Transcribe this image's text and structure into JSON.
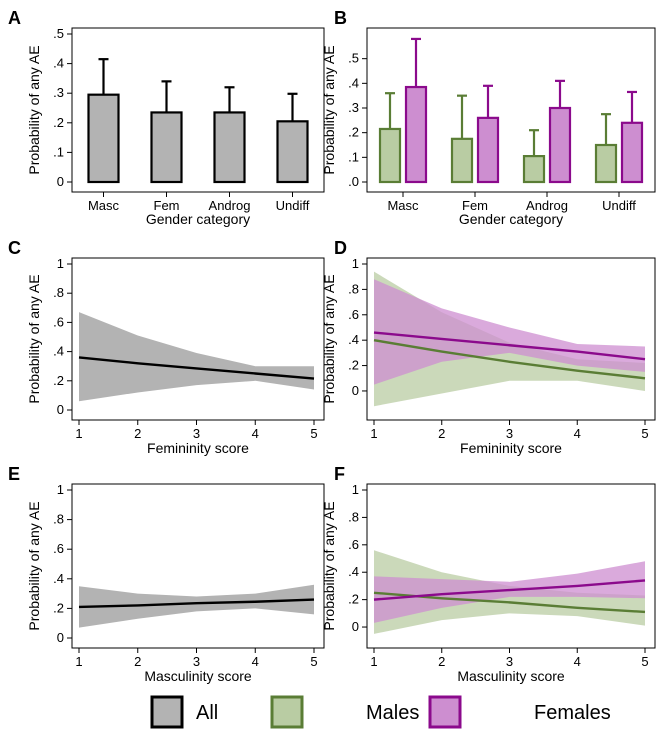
{
  "colors": {
    "all_fill": "#b3b3b3",
    "all_line": "#000000",
    "males": "#5a7d35",
    "males_fill": "#b9cca3",
    "females": "#8b0a8c",
    "females_fill": "#cd8ed0"
  },
  "legend": [
    {
      "key": "all",
      "label": "All"
    },
    {
      "key": "males",
      "label": "Males"
    },
    {
      "key": "females",
      "label": "Females"
    }
  ],
  "chart_data": [
    {
      "panel": "A",
      "type": "bar",
      "categories": [
        "Masc",
        "Fem",
        "Androg",
        "Undiff"
      ],
      "series": [
        {
          "name": "All",
          "values": [
            0.295,
            0.235,
            0.235,
            0.205
          ],
          "upper": [
            0.415,
            0.34,
            0.32,
            0.298
          ]
        }
      ],
      "xlabel": "Gender category",
      "ylabel": "Probability of any AE",
      "ylim": [
        0,
        0.5
      ],
      "yticks": [
        0,
        0.1,
        0.2,
        0.3,
        0.4,
        0.5
      ],
      "yticklabels": [
        "0",
        ".1",
        ".2",
        ".3",
        ".4",
        ".5"
      ]
    },
    {
      "panel": "B",
      "type": "bar",
      "categories": [
        "Masc",
        "Fem",
        "Androg",
        "Undiff"
      ],
      "series": [
        {
          "name": "Males",
          "values": [
            0.215,
            0.175,
            0.105,
            0.15
          ],
          "upper": [
            0.36,
            0.35,
            0.21,
            0.275
          ]
        },
        {
          "name": "Females",
          "values": [
            0.385,
            0.26,
            0.3,
            0.24
          ],
          "upper": [
            0.58,
            0.39,
            0.41,
            0.365
          ]
        }
      ],
      "xlabel": "Gender category",
      "ylabel": "Probability of any AE",
      "ylim": [
        0,
        0.6
      ],
      "yticks": [
        0,
        0.1,
        0.2,
        0.3,
        0.4,
        0.5
      ],
      "yticklabels": [
        ".0",
        ".1",
        ".2",
        ".3",
        ".4",
        ".5"
      ]
    },
    {
      "panel": "C",
      "type": "line",
      "x": [
        1,
        2,
        3,
        4,
        5
      ],
      "series": [
        {
          "name": "All",
          "values": [
            0.36,
            0.32,
            0.285,
            0.25,
            0.215
          ],
          "lower": [
            0.06,
            0.12,
            0.17,
            0.2,
            0.14
          ],
          "upper": [
            0.67,
            0.51,
            0.39,
            0.3,
            0.3
          ]
        }
      ],
      "xlabel": "Femininity score",
      "ylabel": "Probability of any AE",
      "xlim": [
        1,
        5
      ],
      "ylim": [
        0,
        1
      ],
      "xticks": [
        1,
        2,
        3,
        4,
        5
      ],
      "yticks": [
        0,
        0.2,
        0.4,
        0.6,
        0.8,
        1
      ],
      "yticklabels": [
        "0",
        ".2",
        ".4",
        ".6",
        ".8",
        "1"
      ]
    },
    {
      "panel": "D",
      "type": "line",
      "x": [
        1,
        2,
        3,
        4,
        5
      ],
      "series": [
        {
          "name": "Males",
          "values": [
            0.4,
            0.31,
            0.23,
            0.16,
            0.1
          ],
          "lower": [
            -0.12,
            -0.02,
            0.08,
            0.08,
            0.0
          ],
          "upper": [
            0.94,
            0.62,
            0.38,
            0.25,
            0.22
          ]
        },
        {
          "name": "Females",
          "values": [
            0.46,
            0.41,
            0.36,
            0.31,
            0.25
          ],
          "lower": [
            0.05,
            0.23,
            0.3,
            0.2,
            0.15
          ],
          "upper": [
            0.88,
            0.65,
            0.5,
            0.37,
            0.35
          ]
        }
      ],
      "xlabel": "Femininity score",
      "ylabel": "Probability of any AE",
      "xlim": [
        1,
        5
      ],
      "ylim": [
        -0.15,
        1
      ],
      "xticks": [
        1,
        2,
        3,
        4,
        5
      ],
      "yticks": [
        0,
        0.2,
        0.4,
        0.6,
        0.8,
        1
      ],
      "yticklabels": [
        "0",
        ".2",
        ".4",
        ".6",
        ".8",
        "1"
      ]
    },
    {
      "panel": "E",
      "type": "line",
      "x": [
        1,
        2,
        3,
        4,
        5
      ],
      "series": [
        {
          "name": "All",
          "values": [
            0.21,
            0.22,
            0.235,
            0.245,
            0.26
          ],
          "lower": [
            0.07,
            0.13,
            0.18,
            0.2,
            0.16
          ],
          "upper": [
            0.35,
            0.3,
            0.28,
            0.3,
            0.36
          ]
        }
      ],
      "xlabel": "Masculinity score",
      "ylabel": "Probability of any AE",
      "xlim": [
        1,
        5
      ],
      "ylim": [
        0,
        1
      ],
      "xticks": [
        1,
        2,
        3,
        4,
        5
      ],
      "yticks": [
        0,
        0.2,
        0.4,
        0.6,
        0.8,
        1
      ],
      "yticklabels": [
        "0",
        ".2",
        ".4",
        ".6",
        ".8",
        "1"
      ]
    },
    {
      "panel": "F",
      "type": "line",
      "x": [
        1,
        2,
        3,
        4,
        5
      ],
      "series": [
        {
          "name": "Males",
          "values": [
            0.25,
            0.21,
            0.18,
            0.14,
            0.11
          ],
          "lower": [
            -0.05,
            0.05,
            0.1,
            0.08,
            0.01
          ],
          "upper": [
            0.56,
            0.4,
            0.3,
            0.25,
            0.23
          ]
        },
        {
          "name": "Females",
          "values": [
            0.2,
            0.24,
            0.27,
            0.3,
            0.34
          ],
          "lower": [
            0.03,
            0.14,
            0.22,
            0.22,
            0.21
          ],
          "upper": [
            0.37,
            0.35,
            0.33,
            0.39,
            0.48
          ]
        }
      ],
      "xlabel": "Masculinity score",
      "ylabel": "Probability of any AE",
      "xlim": [
        1,
        5
      ],
      "ylim": [
        -0.08,
        1
      ],
      "xticks": [
        1,
        2,
        3,
        4,
        5
      ],
      "yticks": [
        0,
        0.2,
        0.4,
        0.6,
        0.8,
        1
      ],
      "yticklabels": [
        "0",
        ".2",
        ".4",
        ".6",
        ".8",
        "1"
      ]
    }
  ]
}
